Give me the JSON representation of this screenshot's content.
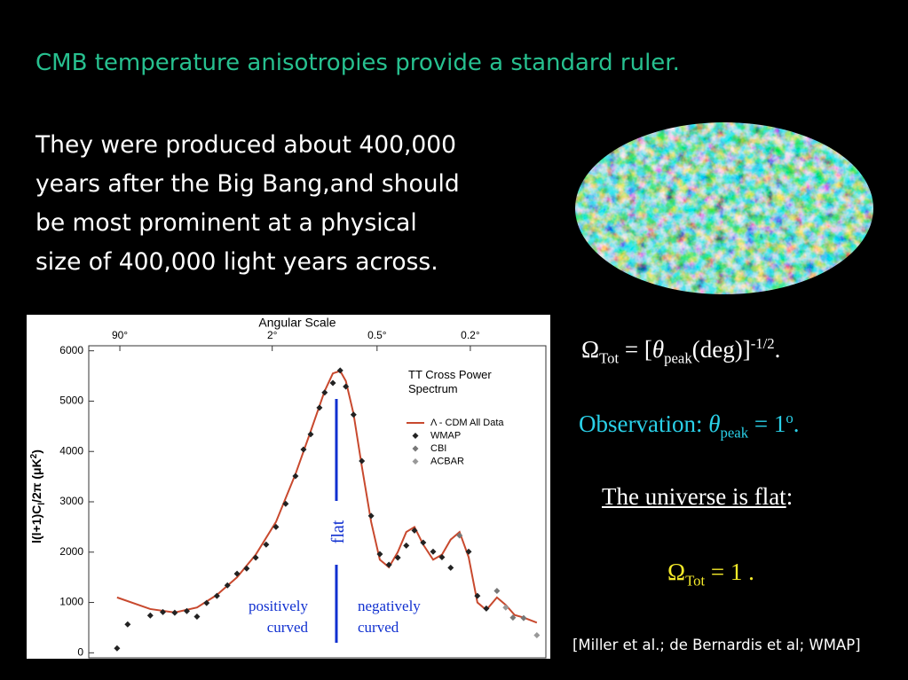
{
  "slide": {
    "title": "CMB temperature anisotropies provide a standard ruler.",
    "body": [
      "They were produced about 400,000",
      "years after the Big Bang,and should",
      "be most prominent at a physical",
      "size of 400,000 light years across."
    ],
    "equation_1": [
      "Ω",
      "Tot",
      " = [",
      "θ",
      "peak",
      "(deg)]",
      "-1/2",
      "."
    ],
    "equation_2": [
      "Observation: ",
      "θ",
      "peak",
      " = 1",
      "o",
      "."
    ],
    "equation_3": [
      "The universe is flat",
      ":"
    ],
    "equation_4": [
      "Ω",
      "Tot",
      " = 1 ."
    ],
    "citation": "[Miller et al.; de Bernardis et al; WMAP]",
    "annotations": {
      "flat": "flat",
      "positively": [
        "positively",
        "curved"
      ],
      "negatively": [
        "negatively",
        "curved"
      ]
    }
  },
  "chart_data": {
    "type": "line",
    "x_label": "Angular Scale",
    "y_label": [
      "l(l+1)C",
      "l",
      "/2π (μK",
      "2",
      ")"
    ],
    "legend_title": [
      "TT Cross Power",
      "Spectrum"
    ],
    "xscale": "log",
    "xlim": [
      1.5,
      1500
    ],
    "ylim": [
      -100,
      6100
    ],
    "xticks": [
      {
        "value": 2.4,
        "label": "90°"
      },
      {
        "value": 24,
        "label": "2°"
      },
      {
        "value": 117,
        "label": "0.5°"
      },
      {
        "value": 479,
        "label": "0.2°"
      }
    ],
    "yticks": [
      0,
      1000,
      2000,
      3000,
      4000,
      5000,
      6000
    ],
    "series": [
      {
        "name": "Λ - CDM All Data",
        "kind": "line",
        "color": "#c8492e",
        "x": [
          2.3,
          3.8,
          5.5,
          7.7,
          10.4,
          14.1,
          18.7,
          25.4,
          34.1,
          42.9,
          53,
          60,
          67,
          73,
          82,
          93,
          107,
          122,
          140,
          160,
          182,
          206,
          235,
          273,
          312,
          356,
          407,
          467,
          533,
          610,
          716,
          818,
          937,
          1072,
          1309
        ],
        "values": [
          1100,
          870,
          800,
          900,
          1150,
          1500,
          1950,
          2600,
          3550,
          4400,
          5200,
          5550,
          5600,
          5400,
          4750,
          3700,
          2600,
          1850,
          1700,
          2000,
          2400,
          2500,
          2150,
          1850,
          1950,
          2250,
          2400,
          1900,
          1000,
          850,
          1100,
          950,
          750,
          700,
          600
        ]
      },
      {
        "name": "WMAP",
        "kind": "scatter",
        "color": "#222222",
        "x": [
          2.3,
          2.7,
          3.8,
          4.6,
          5.5,
          6.6,
          7.7,
          8.9,
          10.4,
          12.2,
          14.1,
          16.3,
          18.7,
          21.9,
          25.4,
          29.4,
          34.1,
          38.5,
          42.9,
          49,
          53,
          60,
          67,
          73,
          82,
          93,
          107,
          122,
          140,
          160,
          182,
          206,
          235,
          273,
          312,
          356,
          467,
          533,
          610
        ],
        "values": [
          90,
          565,
          740,
          810,
          795,
          830,
          720,
          990,
          1130,
          1340,
          1570,
          1675,
          1890,
          2150,
          2500,
          2960,
          3510,
          4040,
          4340,
          4870,
          5170,
          5360,
          5610,
          5290,
          4730,
          3810,
          2720,
          1960,
          1750,
          1890,
          2130,
          2430,
          2190,
          2010,
          1900,
          1690,
          2010,
          1130,
          880
        ]
      },
      {
        "name": "CBI",
        "kind": "scatter",
        "color": "#777777",
        "x": [
          407,
          716,
          912,
          1072
        ],
        "values": [
          2330,
          1230,
          700,
          690
        ]
      },
      {
        "name": "ACBAR",
        "kind": "scatter",
        "color": "#999999",
        "x": [
          818,
          1309
        ],
        "values": [
          900,
          350
        ]
      }
    ]
  }
}
